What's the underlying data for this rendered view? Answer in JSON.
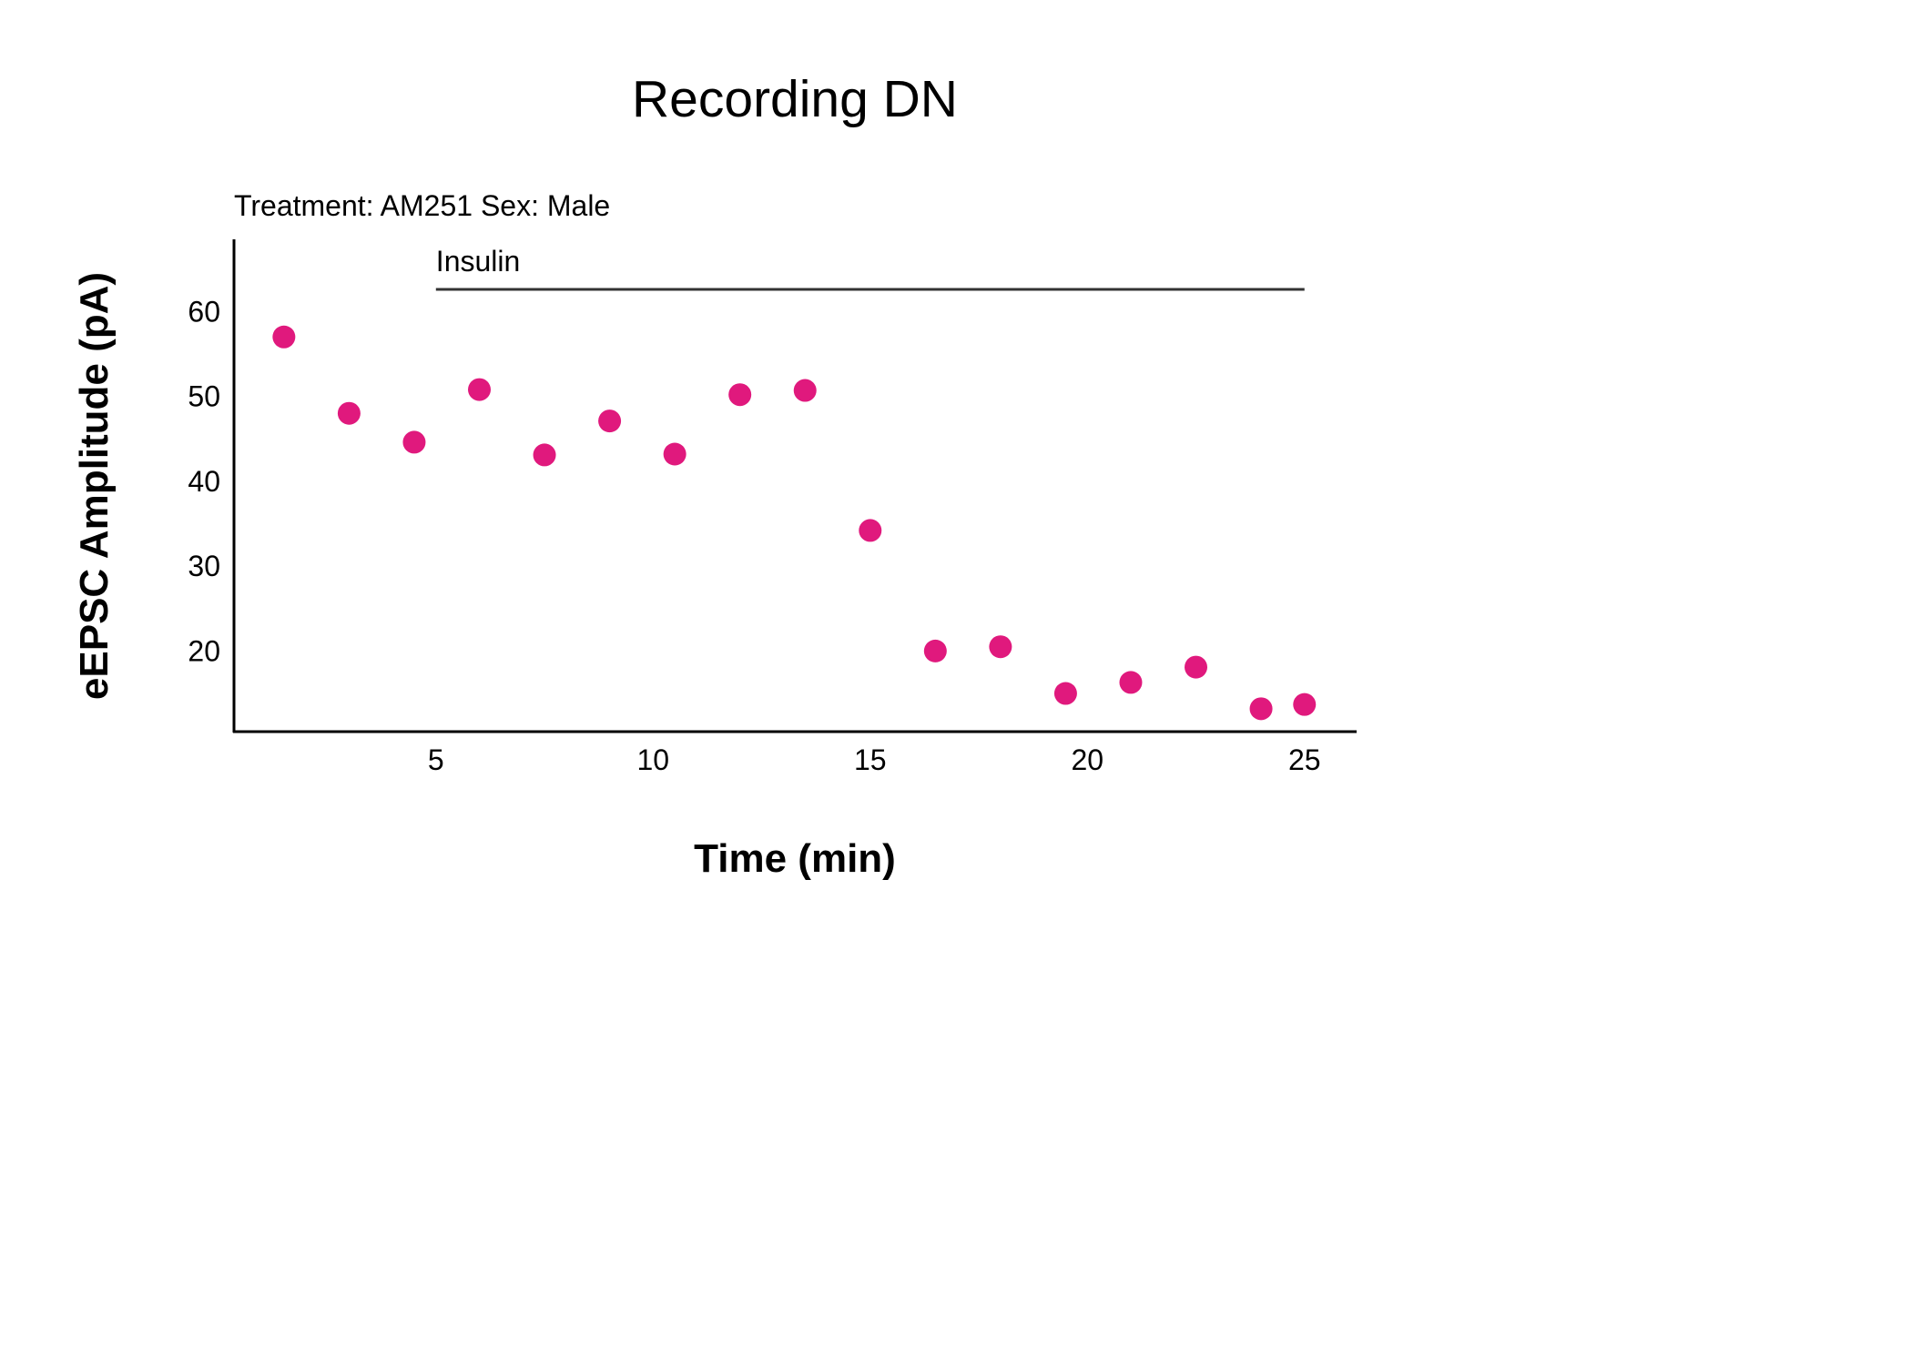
{
  "chart_data": {
    "type": "scatter",
    "title": "Recording DN",
    "subtitle": "Treatment: AM251  Sex: Male",
    "xlabel": "Time (min)",
    "ylabel": "eEPSC Amplitude (pA)",
    "xlim": [
      0.35,
      26.2
    ],
    "ylim": [
      10.5,
      68.5
    ],
    "xticks": [
      5,
      10,
      15,
      20,
      25
    ],
    "yticks": [
      20,
      30,
      40,
      50,
      60
    ],
    "grid": false,
    "point_color": "#e0197d",
    "annotation": {
      "label": "Insulin",
      "x_start": 5,
      "x_end": 25
    },
    "series": [
      {
        "x": [
          1.5,
          3,
          4.5,
          6,
          7.5,
          9,
          10.5,
          12,
          13.5,
          15,
          16.5,
          18,
          19.5,
          21,
          22.5,
          24,
          25
        ],
        "y": [
          57,
          48,
          44.6,
          50.8,
          43.1,
          47.1,
          43.2,
          50.2,
          50.7,
          34.2,
          20,
          20.5,
          15,
          16.3,
          18.1,
          13.2,
          13.7
        ]
      }
    ]
  }
}
